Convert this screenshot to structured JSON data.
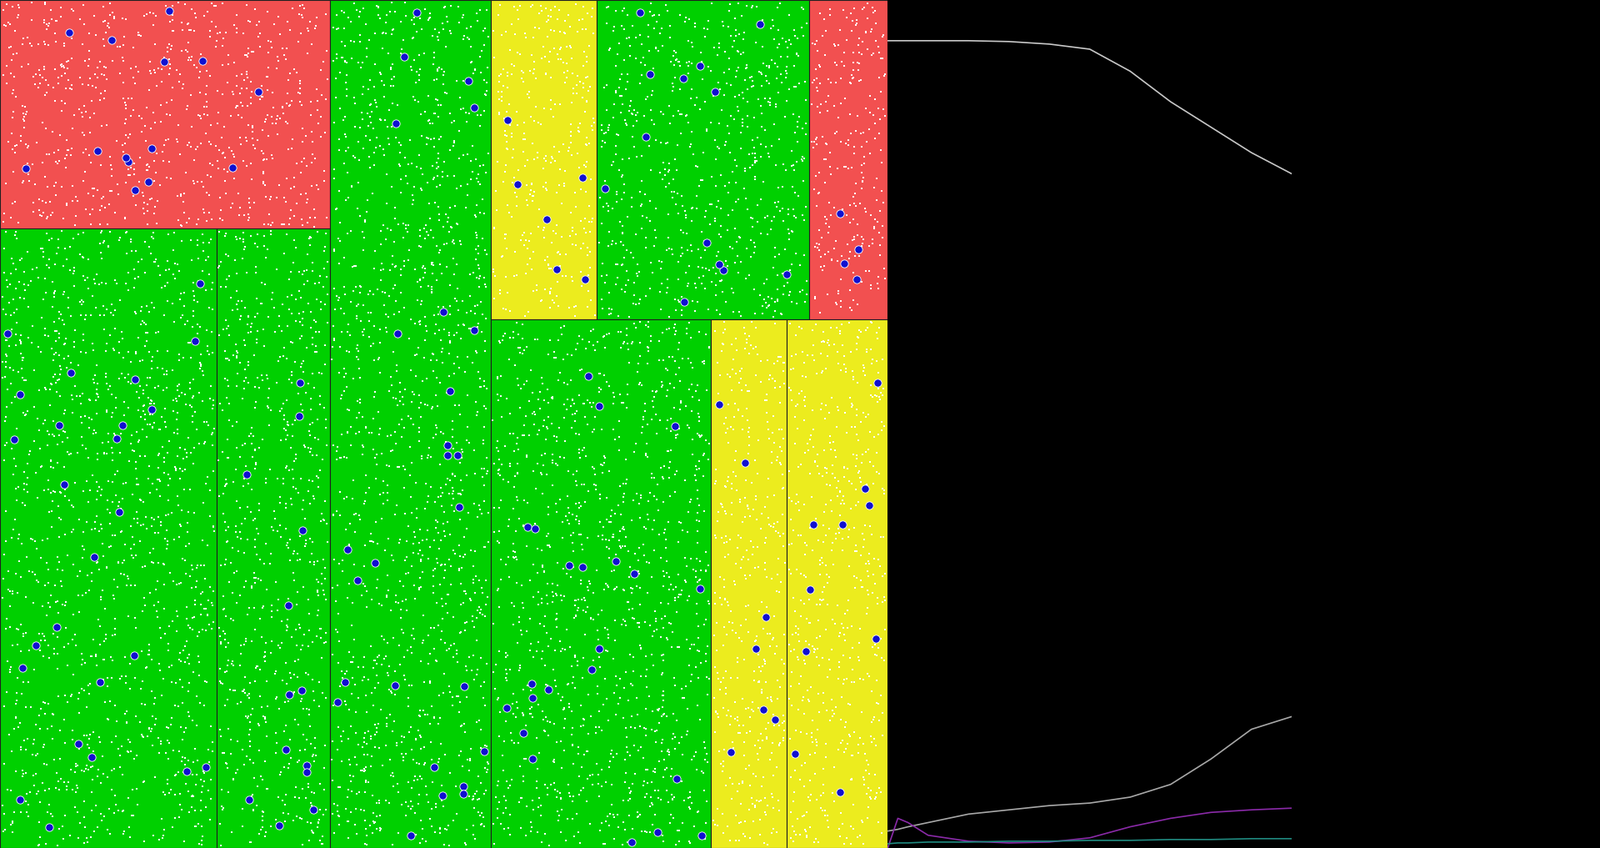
{
  "panels": [
    {
      "color": "#f25050"
    },
    {
      "color": "#00d000"
    },
    {
      "color": "#00d000"
    },
    {
      "color": "#00d000"
    },
    {
      "color": "#ecec1e"
    },
    {
      "color": "#00d000"
    },
    {
      "color": "#f25050"
    },
    {
      "color": "#00d000"
    },
    {
      "color": "#ecec1e"
    },
    {
      "color": "#ecec1e"
    }
  ],
  "chart_data": {
    "type": "line",
    "tick_labels": false,
    "xlim": [
      0,
      100
    ],
    "ylim": [
      0,
      1
    ],
    "x": [
      0,
      2.5,
      5,
      10,
      20,
      30,
      40,
      50,
      60,
      70,
      80,
      90,
      100
    ],
    "series": [
      {
        "color": "#c8c8c8",
        "values": [
          0.952,
          0.952,
          0.952,
          0.952,
          0.952,
          0.951,
          0.948,
          0.942,
          0.916,
          0.88,
          0.85,
          0.82,
          0.795
        ]
      },
      {
        "color": "#a8a8a8",
        "values": [
          0.02,
          0.022,
          0.025,
          0.03,
          0.04,
          0.045,
          0.05,
          0.053,
          0.06,
          0.075,
          0.105,
          0.14,
          0.155
        ]
      },
      {
        "color": "#8a2aa8",
        "values": [
          0.0,
          0.035,
          0.03,
          0.015,
          0.008,
          0.006,
          0.007,
          0.012,
          0.025,
          0.035,
          0.042,
          0.045,
          0.047
        ]
      },
      {
        "color": "#208a80",
        "values": [
          0.005,
          0.006,
          0.006,
          0.007,
          0.007,
          0.008,
          0.008,
          0.009,
          0.009,
          0.01,
          0.01,
          0.011,
          0.011
        ]
      }
    ]
  }
}
